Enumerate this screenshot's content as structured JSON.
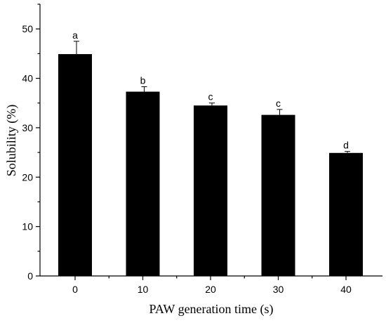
{
  "chart_data": {
    "type": "bar",
    "title": "",
    "xlabel": "PAW generation time (s)",
    "ylabel": "Solubility (%)",
    "categories": [
      "0",
      "10",
      "20",
      "30",
      "40"
    ],
    "values": [
      44.9,
      37.3,
      34.5,
      32.6,
      24.9
    ],
    "errors": [
      2.6,
      1.0,
      0.5,
      1.1,
      0.3
    ],
    "significance_labels": [
      "a",
      "b",
      "c",
      "c",
      "d"
    ],
    "ylim": [
      0,
      55
    ],
    "yticks": [
      "0",
      "10",
      "20",
      "30",
      "40",
      "50"
    ],
    "grid": false,
    "bar_color": "#000000"
  }
}
